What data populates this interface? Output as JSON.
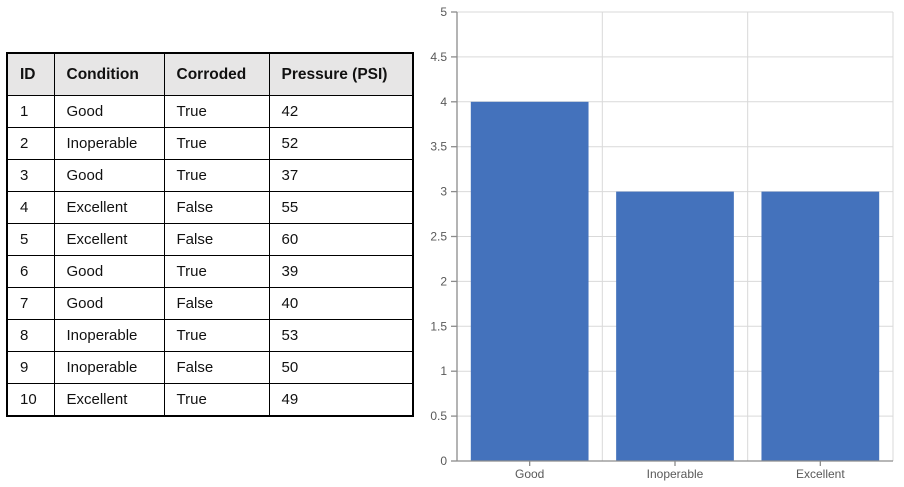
{
  "table": {
    "headers": [
      "ID",
      "Condition",
      "Corroded",
      "Pressure (PSI)"
    ],
    "rows": [
      [
        "1",
        "Good",
        "True",
        "42"
      ],
      [
        "2",
        "Inoperable",
        "True",
        "52"
      ],
      [
        "3",
        "Good",
        "True",
        "37"
      ],
      [
        "4",
        "Excellent",
        "False",
        "55"
      ],
      [
        "5",
        "Excellent",
        "False",
        "60"
      ],
      [
        "6",
        "Good",
        "True",
        "39"
      ],
      [
        "7",
        "Good",
        "False",
        "40"
      ],
      [
        "8",
        "Inoperable",
        "True",
        "53"
      ],
      [
        "9",
        "Inoperable",
        "False",
        "50"
      ],
      [
        "10",
        "Excellent",
        "True",
        "49"
      ]
    ],
    "header_bg": "#e7e6e6",
    "border_color": "#000000"
  },
  "chart_data": {
    "type": "bar",
    "title": "",
    "xlabel": "",
    "ylabel": "",
    "categories": [
      "Good",
      "Inoperable",
      "Excellent"
    ],
    "values": [
      4,
      3,
      3
    ],
    "ylim": [
      0,
      5
    ],
    "ytick_step": 0.5,
    "ytick_labels": [
      "0",
      "0.5",
      "1",
      "1.5",
      "2",
      "2.5",
      "3",
      "3.5",
      "4",
      "4.5",
      "5"
    ],
    "grid": true,
    "legend": false,
    "bar_color": "#4472bc",
    "gridline_color": "#d9d9d9",
    "axis_color": "#8c8c8c",
    "label_color": "#595959"
  }
}
